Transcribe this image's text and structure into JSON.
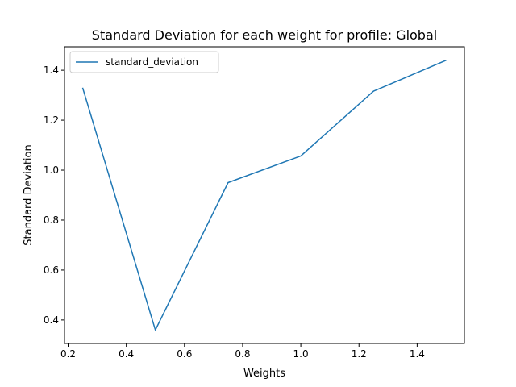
{
  "chart_data": {
    "type": "line",
    "title": "Standard Deviation for each weight for profile: Global",
    "xlabel": "Weights",
    "ylabel": "Standard Deviation",
    "xlim": [
      0.1875,
      1.5625
    ],
    "ylim": [
      0.306,
      1.494
    ],
    "xticks": [
      0.2,
      0.4,
      0.6,
      0.8,
      1.0,
      1.2,
      1.4
    ],
    "xtick_labels": [
      "0.2",
      "0.4",
      "0.6",
      "0.8",
      "1.0",
      "1.2",
      "1.4"
    ],
    "yticks": [
      0.4,
      0.6,
      0.8,
      1.0,
      1.2,
      1.4
    ],
    "ytick_labels": [
      "0.4",
      "0.6",
      "0.8",
      "1.0",
      "1.2",
      "1.4"
    ],
    "grid": false,
    "legend_position": "upper-left",
    "series": [
      {
        "name": "standard_deviation",
        "color": "#1f77b4",
        "x": [
          0.25,
          0.5,
          0.75,
          1.0,
          1.25,
          1.5
        ],
        "y": [
          1.33,
          0.36,
          0.95,
          1.057,
          1.316,
          1.44
        ]
      }
    ]
  }
}
